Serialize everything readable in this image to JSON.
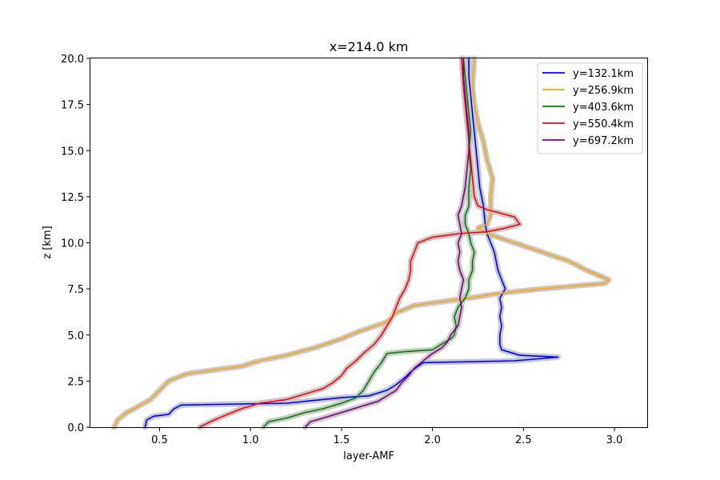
{
  "chart_data": {
    "type": "line",
    "title": "x=214.0 km",
    "xlabel": "layer-AMF",
    "ylabel": "z [km]",
    "xlim": [
      0.12,
      3.18
    ],
    "ylim": [
      0,
      20
    ],
    "xticks": [
      "0.5",
      "1.0",
      "1.5",
      "2.0",
      "2.5",
      "3.0"
    ],
    "yticks": [
      "0.0",
      "2.5",
      "5.0",
      "7.5",
      "10.0",
      "12.5",
      "15.0",
      "17.5",
      "20.0"
    ],
    "grid": false,
    "legend_position": "top-right",
    "uncertainty_band_color": "#c8c8c8",
    "series": [
      {
        "name": "y=132.1km",
        "color": "#0000ff",
        "points": [
          [
            0.42,
            0.0
          ],
          [
            0.43,
            0.4
          ],
          [
            0.47,
            0.6
          ],
          [
            0.55,
            0.7
          ],
          [
            0.58,
            1.0
          ],
          [
            0.62,
            1.2
          ],
          [
            1.2,
            1.3
          ],
          [
            1.5,
            1.6
          ],
          [
            1.65,
            1.7
          ],
          [
            1.75,
            2.0
          ],
          [
            1.8,
            2.3
          ],
          [
            1.85,
            2.7
          ],
          [
            1.88,
            3.0
          ],
          [
            1.92,
            3.3
          ],
          [
            1.95,
            3.5
          ],
          [
            2.45,
            3.6
          ],
          [
            2.69,
            3.8
          ],
          [
            2.48,
            3.9
          ],
          [
            2.38,
            4.2
          ],
          [
            2.37,
            4.5
          ],
          [
            2.37,
            5.0
          ],
          [
            2.38,
            5.5
          ],
          [
            2.37,
            6.0
          ],
          [
            2.38,
            6.5
          ],
          [
            2.37,
            7.0
          ],
          [
            2.4,
            7.5
          ],
          [
            2.38,
            8.0
          ],
          [
            2.36,
            8.5
          ],
          [
            2.35,
            9.0
          ],
          [
            2.34,
            9.5
          ],
          [
            2.32,
            10.0
          ],
          [
            2.3,
            10.5
          ],
          [
            2.29,
            11.0
          ],
          [
            2.28,
            12.0
          ],
          [
            2.26,
            13.0
          ],
          [
            2.25,
            14.0
          ],
          [
            2.24,
            15.0
          ],
          [
            2.23,
            16.0
          ],
          [
            2.22,
            17.0
          ],
          [
            2.21,
            18.0
          ],
          [
            2.2,
            19.0
          ],
          [
            2.2,
            20.0
          ]
        ]
      },
      {
        "name": "y=256.9km",
        "color": "#ffa500",
        "points": [
          [
            0.25,
            0.0
          ],
          [
            0.27,
            0.4
          ],
          [
            0.32,
            0.8
          ],
          [
            0.36,
            1.0
          ],
          [
            0.45,
            1.5
          ],
          [
            0.5,
            2.0
          ],
          [
            0.55,
            2.5
          ],
          [
            0.65,
            2.9
          ],
          [
            0.8,
            3.1
          ],
          [
            0.95,
            3.3
          ],
          [
            1.05,
            3.6
          ],
          [
            1.2,
            3.9
          ],
          [
            1.35,
            4.3
          ],
          [
            1.5,
            4.8
          ],
          [
            1.6,
            5.2
          ],
          [
            1.75,
            5.7
          ],
          [
            1.8,
            6.2
          ],
          [
            1.9,
            6.6
          ],
          [
            2.2,
            7.0
          ],
          [
            2.4,
            7.3
          ],
          [
            2.6,
            7.5
          ],
          [
            2.95,
            7.8
          ],
          [
            2.97,
            8.0
          ],
          [
            2.85,
            8.5
          ],
          [
            2.75,
            9.0
          ],
          [
            2.6,
            9.5
          ],
          [
            2.45,
            10.0
          ],
          [
            2.3,
            10.5
          ],
          [
            2.25,
            10.8
          ],
          [
            2.3,
            11.0
          ],
          [
            2.32,
            11.5
          ],
          [
            2.32,
            12.5
          ],
          [
            2.33,
            13.5
          ],
          [
            2.3,
            14.5
          ],
          [
            2.28,
            15.5
          ],
          [
            2.25,
            16.5
          ],
          [
            2.23,
            17.5
          ],
          [
            2.22,
            18.5
          ],
          [
            2.23,
            20.0
          ]
        ]
      },
      {
        "name": "y=403.6km",
        "color": "#008000",
        "points": [
          [
            1.07,
            0.0
          ],
          [
            1.1,
            0.3
          ],
          [
            1.2,
            0.5
          ],
          [
            1.3,
            0.8
          ],
          [
            1.4,
            1.0
          ],
          [
            1.5,
            1.3
          ],
          [
            1.58,
            1.6
          ],
          [
            1.62,
            2.0
          ],
          [
            1.65,
            2.5
          ],
          [
            1.68,
            3.0
          ],
          [
            1.72,
            3.5
          ],
          [
            1.75,
            4.0
          ],
          [
            1.85,
            4.1
          ],
          [
            2.0,
            4.2
          ],
          [
            2.05,
            4.5
          ],
          [
            2.1,
            4.8
          ],
          [
            2.12,
            5.0
          ],
          [
            2.13,
            5.5
          ],
          [
            2.12,
            6.0
          ],
          [
            2.14,
            6.5
          ],
          [
            2.18,
            7.0
          ],
          [
            2.2,
            7.5
          ],
          [
            2.2,
            8.0
          ],
          [
            2.22,
            8.5
          ],
          [
            2.22,
            9.0
          ],
          [
            2.23,
            9.5
          ],
          [
            2.21,
            10.0
          ],
          [
            2.2,
            10.5
          ],
          [
            2.18,
            11.0
          ],
          [
            2.18,
            11.5
          ],
          [
            2.2,
            12.0
          ],
          [
            2.2,
            13.0
          ],
          [
            2.21,
            14.0
          ],
          [
            2.2,
            15.0
          ],
          [
            2.21,
            16.0
          ],
          [
            2.2,
            17.0
          ],
          [
            2.19,
            18.0
          ],
          [
            2.18,
            19.0
          ],
          [
            2.17,
            20.0
          ]
        ]
      },
      {
        "name": "y=550.4km",
        "color": "#ff0000",
        "points": [
          [
            0.72,
            0.0
          ],
          [
            0.78,
            0.3
          ],
          [
            0.85,
            0.6
          ],
          [
            0.95,
            1.0
          ],
          [
            1.05,
            1.3
          ],
          [
            1.2,
            1.5
          ],
          [
            1.3,
            1.8
          ],
          [
            1.4,
            2.1
          ],
          [
            1.45,
            2.4
          ],
          [
            1.5,
            2.8
          ],
          [
            1.53,
            3.2
          ],
          [
            1.58,
            3.6
          ],
          [
            1.62,
            4.0
          ],
          [
            1.68,
            4.5
          ],
          [
            1.72,
            5.0
          ],
          [
            1.75,
            5.5
          ],
          [
            1.78,
            6.0
          ],
          [
            1.8,
            6.5
          ],
          [
            1.82,
            7.0
          ],
          [
            1.85,
            7.5
          ],
          [
            1.87,
            8.0
          ],
          [
            1.88,
            8.5
          ],
          [
            1.88,
            9.0
          ],
          [
            1.9,
            9.5
          ],
          [
            1.92,
            10.0
          ],
          [
            2.0,
            10.3
          ],
          [
            2.15,
            10.5
          ],
          [
            2.3,
            10.6
          ],
          [
            2.4,
            10.8
          ],
          [
            2.48,
            11.0
          ],
          [
            2.45,
            11.4
          ],
          [
            2.3,
            11.8
          ],
          [
            2.25,
            12.0
          ],
          [
            2.23,
            12.5
          ],
          [
            2.22,
            13.5
          ],
          [
            2.21,
            14.5
          ],
          [
            2.2,
            15.5
          ],
          [
            2.19,
            16.5
          ],
          [
            2.18,
            17.5
          ],
          [
            2.17,
            18.5
          ],
          [
            2.16,
            20.0
          ]
        ]
      },
      {
        "name": "y=697.2km",
        "color": "#800080",
        "points": [
          [
            1.3,
            0.0
          ],
          [
            1.33,
            0.3
          ],
          [
            1.4,
            0.5
          ],
          [
            1.5,
            0.8
          ],
          [
            1.6,
            1.1
          ],
          [
            1.7,
            1.4
          ],
          [
            1.75,
            1.7
          ],
          [
            1.8,
            2.0
          ],
          [
            1.83,
            2.4
          ],
          [
            1.87,
            2.8
          ],
          [
            1.9,
            3.2
          ],
          [
            1.95,
            3.6
          ],
          [
            2.0,
            4.0
          ],
          [
            2.05,
            4.3
          ],
          [
            2.08,
            4.6
          ],
          [
            2.1,
            5.0
          ],
          [
            2.14,
            5.5
          ],
          [
            2.15,
            6.0
          ],
          [
            2.16,
            6.5
          ],
          [
            2.15,
            7.0
          ],
          [
            2.16,
            7.5
          ],
          [
            2.17,
            8.0
          ],
          [
            2.15,
            8.5
          ],
          [
            2.14,
            9.0
          ],
          [
            2.15,
            9.5
          ],
          [
            2.14,
            10.0
          ],
          [
            2.16,
            10.5
          ],
          [
            2.15,
            11.0
          ],
          [
            2.14,
            11.5
          ],
          [
            2.16,
            12.0
          ],
          [
            2.18,
            13.0
          ],
          [
            2.19,
            14.0
          ],
          [
            2.2,
            15.0
          ],
          [
            2.2,
            16.0
          ],
          [
            2.19,
            17.0
          ],
          [
            2.18,
            18.0
          ],
          [
            2.17,
            19.0
          ],
          [
            2.17,
            20.0
          ]
        ]
      }
    ]
  }
}
